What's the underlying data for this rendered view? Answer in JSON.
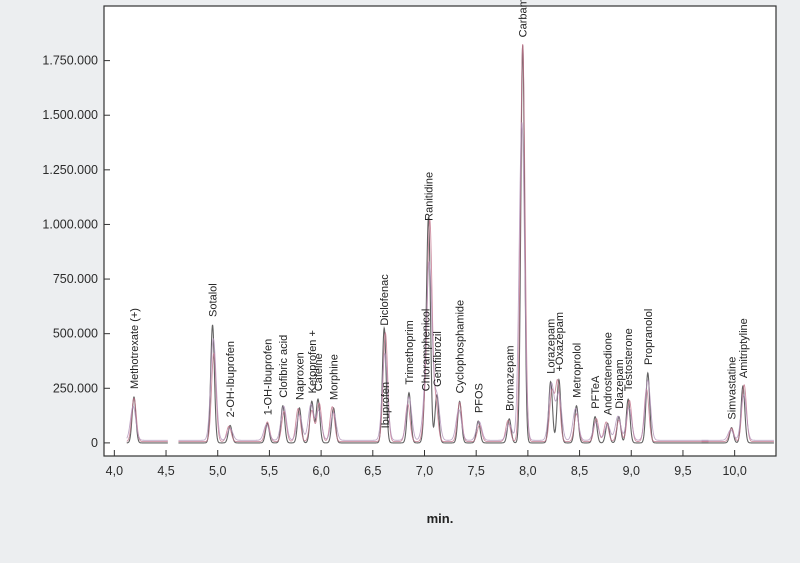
{
  "chart_data": {
    "type": "line",
    "title": "",
    "xlabel": "min.",
    "ylabel": "",
    "xlim": [
      3.9,
      10.4
    ],
    "ylim": [
      -60000,
      2000000
    ],
    "x_ticks": [
      "4,0",
      "4,5",
      "5,0",
      "5,5",
      "6,0",
      "6,5",
      "7,0",
      "7,5",
      "8,0",
      "8,5",
      "9,0",
      "9,5",
      "10,0"
    ],
    "x_tick_values": [
      4.0,
      4.5,
      5.0,
      5.5,
      6.0,
      6.5,
      7.0,
      7.5,
      8.0,
      8.5,
      9.0,
      9.5,
      10.0
    ],
    "y_ticks": [
      "0",
      "250.000",
      "500.000",
      "750.000",
      "1.000.000",
      "1.250.000",
      "1.500.000",
      "1.750.000"
    ],
    "y_tick_values": [
      0,
      250000,
      500000,
      750000,
      1000000,
      1250000,
      1500000,
      1750000
    ],
    "grid": false,
    "series_colors": [
      "#5a5a5a",
      "#c2728a",
      "#b090b8"
    ],
    "peaks": [
      {
        "label": "Methotrexate (+)",
        "x": 4.19,
        "y": 210000
      },
      {
        "label": "Sotalol",
        "x": 4.95,
        "y": 540000
      },
      {
        "label": "2-OH-Ibuprofen",
        "x": 5.12,
        "y": 80000
      },
      {
        "label": "1-OH-Ibuprofen",
        "x": 5.48,
        "y": 90000
      },
      {
        "label": "Clofibric acid",
        "x": 5.63,
        "y": 170000
      },
      {
        "label": "Naproxen",
        "x": 5.79,
        "y": 160000
      },
      {
        "label": "Ketoprofen +",
        "x": 5.91,
        "y": 190000
      },
      {
        "label": "Cafeine",
        "x": 5.97,
        "y": 200000
      },
      {
        "label": "Morphine",
        "x": 6.12,
        "y": 160000
      },
      {
        "label": "Ibuprofen",
        "x": 6.62,
        "y": 30000
      },
      {
        "label": "Diclofenac",
        "x": 6.61,
        "y": 500000
      },
      {
        "label": "Trimethoprim",
        "x": 6.85,
        "y": 230000
      },
      {
        "label": "Chloramphenicol",
        "x": 7.01,
        "y": 200000
      },
      {
        "label": "Ranitidine",
        "x": 7.04,
        "y": 980000
      },
      {
        "label": "Gemfibrozil",
        "x": 7.12,
        "y": 220000
      },
      {
        "label": "Cyclophosphamide",
        "x": 7.34,
        "y": 190000
      },
      {
        "label": "PFOS",
        "x": 7.52,
        "y": 100000
      },
      {
        "label": "Bromazepam",
        "x": 7.82,
        "y": 110000
      },
      {
        "label": "Carbamazepine",
        "x": 7.95,
        "y": 1820000
      },
      {
        "label": "Lorazepam",
        "x": 8.22,
        "y": 280000
      },
      {
        "label": "+Oxazepam",
        "x": 8.3,
        "y": 290000
      },
      {
        "label": "Metroprolol",
        "x": 8.47,
        "y": 170000
      },
      {
        "label": "PFTeA",
        "x": 8.65,
        "y": 120000
      },
      {
        "label": "Androstenedione",
        "x": 8.77,
        "y": 90000
      },
      {
        "label": "Diazepam",
        "x": 8.88,
        "y": 120000
      },
      {
        "label": "Testosterone",
        "x": 8.97,
        "y": 200000
      },
      {
        "label": "Propranolol",
        "x": 9.16,
        "y": 320000
      },
      {
        "label": "Simvastatine",
        "x": 9.97,
        "y": 70000
      },
      {
        "label": "Amitriptyline",
        "x": 10.08,
        "y": 260000
      }
    ]
  }
}
